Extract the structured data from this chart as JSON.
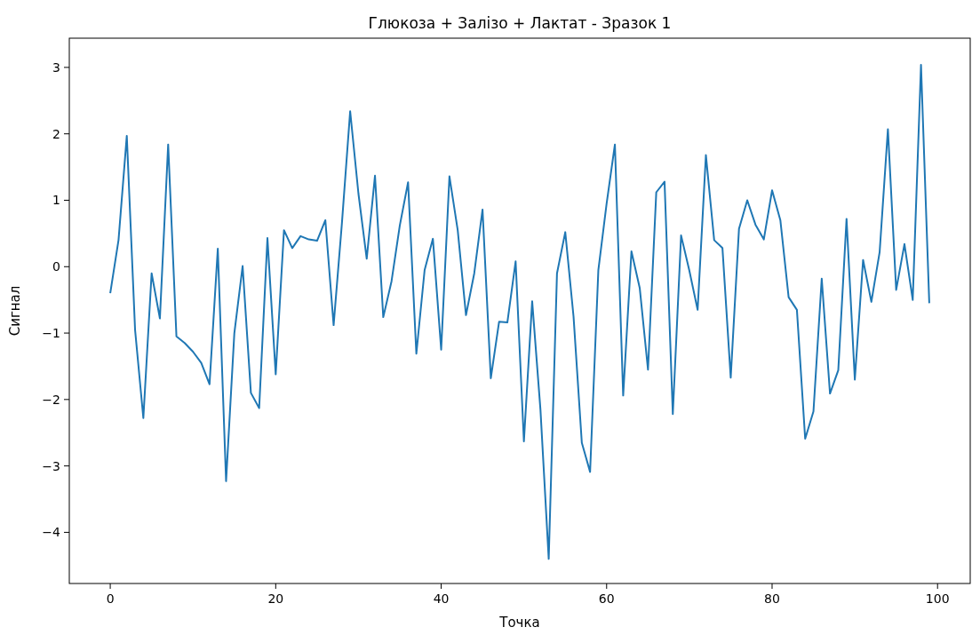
{
  "chart_data": {
    "type": "line",
    "title": "Глюкоза + Залізо + Лактат - Зразок 1",
    "xlabel": "Точка",
    "ylabel": "Сигнал",
    "x": [
      0,
      1,
      2,
      3,
      4,
      5,
      6,
      7,
      8,
      9,
      10,
      11,
      12,
      13,
      14,
      15,
      16,
      17,
      18,
      19,
      20,
      21,
      22,
      23,
      24,
      25,
      26,
      27,
      28,
      29,
      30,
      31,
      32,
      33,
      34,
      35,
      36,
      37,
      38,
      39,
      40,
      41,
      42,
      43,
      44,
      45,
      46,
      47,
      48,
      49,
      50,
      51,
      52,
      53,
      54,
      55,
      56,
      57,
      58,
      59,
      60,
      61,
      62,
      63,
      64,
      65,
      66,
      67,
      68,
      69,
      70,
      71,
      72,
      73,
      74,
      75,
      76,
      77,
      78,
      79,
      80,
      81,
      82,
      83,
      84,
      85,
      86,
      87,
      88,
      89,
      90,
      91,
      92,
      93,
      94,
      95,
      96,
      97,
      98,
      99
    ],
    "series": [
      {
        "color": "#1f77b4",
        "values": [
          -0.4,
          0.4,
          1.97,
          -0.95,
          -2.28,
          -0.1,
          -0.78,
          1.84,
          -1.05,
          -1.15,
          -1.28,
          -1.45,
          -1.77,
          0.27,
          -3.23,
          -1.0,
          0.01,
          -1.9,
          -2.13,
          0.43,
          -1.62,
          0.55,
          0.28,
          0.46,
          0.41,
          0.39,
          0.7,
          -0.88,
          0.65,
          2.34,
          1.1,
          0.12,
          1.37,
          -0.76,
          -0.22,
          0.62,
          1.27,
          -1.31,
          -0.05,
          0.42,
          -1.25,
          1.36,
          0.55,
          -0.73,
          -0.1,
          0.86,
          -1.68,
          -0.83,
          -0.84,
          0.08,
          -2.63,
          -0.52,
          -2.15,
          -4.4,
          -0.1,
          0.52,
          -0.75,
          -2.65,
          -3.09,
          -0.05,
          0.95,
          1.84,
          -1.94,
          0.23,
          -0.32,
          -1.55,
          1.12,
          1.28,
          -2.22,
          0.47,
          -0.06,
          -0.65,
          1.68,
          0.4,
          0.28,
          -1.67,
          0.57,
          1.0,
          0.63,
          0.41,
          1.15,
          0.7,
          -0.46,
          -0.65,
          -2.59,
          -2.18,
          -0.18,
          -1.91,
          -1.56,
          0.72,
          -1.7,
          0.1,
          -0.53,
          0.22,
          2.07,
          -0.35,
          0.34,
          -0.5,
          3.04,
          -0.55
        ]
      }
    ],
    "xlim": [
      -4.95,
      103.95
    ],
    "ylim": [
      -4.77,
      3.44
    ],
    "xticks": [
      0,
      20,
      40,
      60,
      80,
      100
    ],
    "yticks": [
      {
        "value": -4,
        "label": "−4"
      },
      {
        "value": -3,
        "label": "−3"
      },
      {
        "value": -2,
        "label": "−2"
      },
      {
        "value": -1,
        "label": "−1"
      },
      0,
      1,
      2,
      3
    ],
    "grid": false
  }
}
